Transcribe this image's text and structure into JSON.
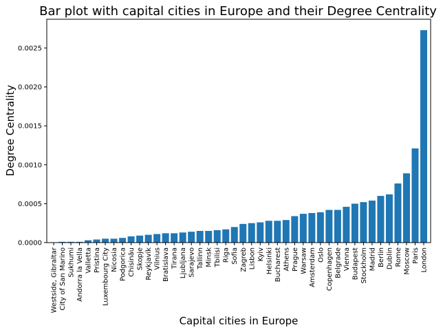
{
  "chart_data": {
    "type": "bar",
    "title": "Bar plot with capital cities in Europe and their Degree Centrality",
    "xlabel": "Capital cities in Europe",
    "ylabel": "Degree Centrality",
    "ylim": [
      0,
      0.00287
    ],
    "yticks": [
      "0.0000",
      "0.0005",
      "0.0010",
      "0.0015",
      "0.0020",
      "0.0025"
    ],
    "ytick_values": [
      0,
      0.0005,
      0.001,
      0.0015,
      0.002,
      0.0025
    ],
    "grid": false,
    "bar_color": "#1f77b4",
    "categories": [
      "Westside, Gibraltar",
      "City of San Marino",
      "Sukhumi",
      "Andorra la Vella",
      "Valletta",
      "Pristina",
      "Luxembourg City",
      "Nicosia",
      "Podgorica",
      "Chisinău",
      "Skopje",
      "Reykjavík",
      "Vilnius",
      "Bratislava",
      "Tirana",
      "Ljubljana",
      "Sarajevo",
      "Tallinn",
      "Minsk",
      "Tbilisi",
      "Riga",
      "Sofia",
      "Zagreb",
      "Lisbon",
      "Kyiv",
      "Helsinki",
      "Bucharest",
      "Athens",
      "Prague",
      "Warsaw",
      "Amsterdam",
      "Oslo",
      "Copenhagen",
      "Belgrade",
      "Vienna",
      "Budapest",
      "Stockholm",
      "Madrid",
      "Berlin",
      "Dublin",
      "Rome",
      "Moscow",
      "Paris",
      "London"
    ],
    "values": [
      0.0,
      1e-05,
      1e-05,
      1e-05,
      3e-05,
      4e-05,
      5e-05,
      5e-05,
      6e-05,
      8e-05,
      9e-05,
      0.0001,
      0.00011,
      0.00012,
      0.00012,
      0.00013,
      0.00014,
      0.00015,
      0.00015,
      0.00016,
      0.00017,
      0.0002,
      0.00024,
      0.00025,
      0.00026,
      0.00028,
      0.00028,
      0.00029,
      0.00034,
      0.00037,
      0.00038,
      0.00039,
      0.00042,
      0.00042,
      0.00046,
      0.0005,
      0.00052,
      0.00054,
      0.0006,
      0.00062,
      0.00076,
      0.00089,
      0.00121,
      0.00273
    ]
  }
}
